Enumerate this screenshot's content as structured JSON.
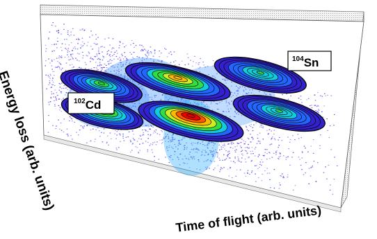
{
  "chart_data": {
    "type": "heatmap",
    "subtype": "3d-perspective-density-with-contours",
    "xlabel": "Time of flight (arb. units)",
    "ylabel": "Energy loss (arb. units)",
    "annotations": [
      {
        "id": "cd",
        "mass": "102",
        "element": "Cd"
      },
      {
        "id": "sn",
        "mass": "104",
        "element": "Sn"
      }
    ],
    "x_range": [
      0,
      1
    ],
    "y_range": [
      0,
      1
    ],
    "grid": false,
    "legend": "none",
    "colormap": [
      "#3322cc",
      "#2266ff",
      "#11ccdd",
      "#33dd44",
      "#ccee22",
      "#ffbb00",
      "#ff5500",
      "#ee0000"
    ],
    "peaks": [
      {
        "x": 0.2,
        "y": 0.66,
        "sx": 0.062,
        "sy": 0.056,
        "amp": 0.45
      },
      {
        "x": 0.2,
        "y": 0.38,
        "sx": 0.062,
        "sy": 0.056,
        "amp": 0.62
      },
      {
        "x": 0.46,
        "y": 0.9,
        "sx": 0.08,
        "sy": 0.06,
        "amp": 0.72
      },
      {
        "x": 0.5,
        "y": 0.52,
        "sx": 0.08,
        "sy": 0.066,
        "amp": 1.0
      },
      {
        "x": 0.74,
        "y": 1.18,
        "sx": 0.07,
        "sy": 0.06,
        "amp": 0.42
      },
      {
        "x": 0.8,
        "y": 0.83,
        "sx": 0.07,
        "sy": 0.06,
        "amp": 0.38
      }
    ],
    "contour_levels": 10
  }
}
